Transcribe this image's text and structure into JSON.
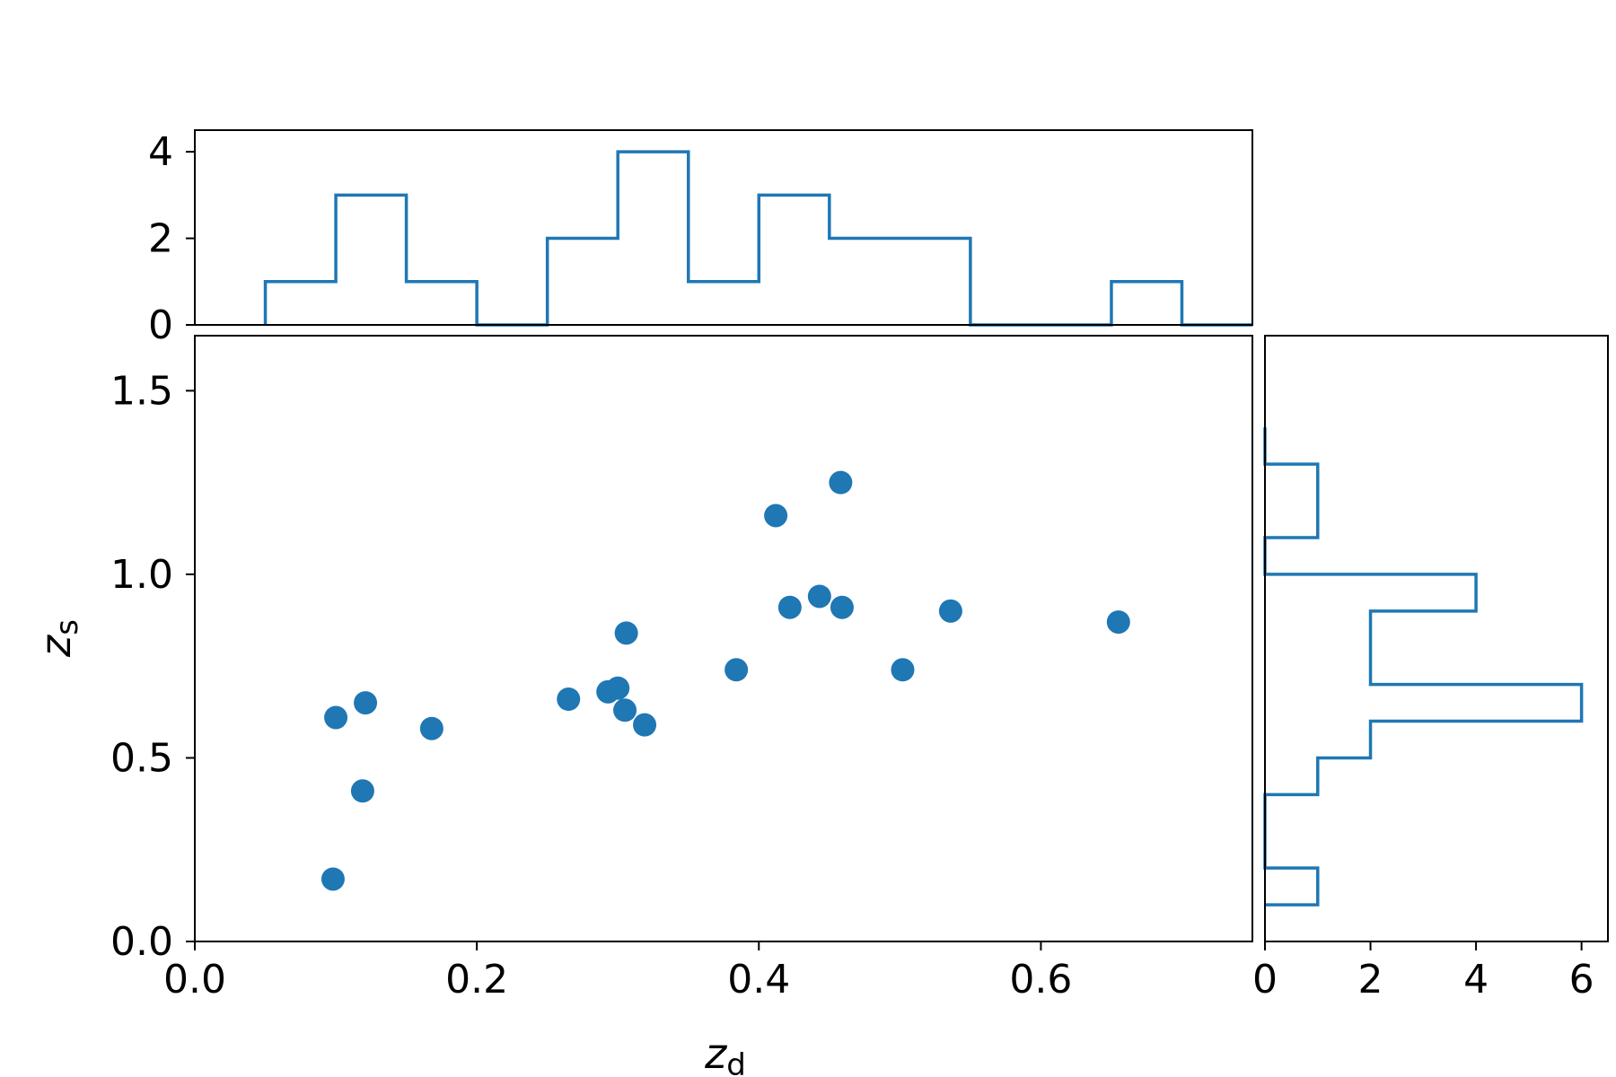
{
  "chart_data": {
    "type": "scatter",
    "layout": "joint plot with marginal step histograms",
    "series_color": "#1f77b4",
    "x_axis": {
      "label_base": "z",
      "label_sub": "d",
      "range": [
        0.0,
        0.75
      ],
      "ticks": [
        0.0,
        0.2,
        0.4,
        0.6
      ],
      "tick_labels": [
        "0.0",
        "0.2",
        "0.4",
        "0.6"
      ]
    },
    "y_axis": {
      "label_base": "z",
      "label_sub": "s",
      "range": [
        0.0,
        1.65
      ],
      "ticks": [
        0.0,
        0.5,
        1.0,
        1.5
      ],
      "tick_labels": [
        "0.0",
        "0.5",
        "1.0",
        "1.5"
      ]
    },
    "points": [
      {
        "x": 0.098,
        "y": 0.17
      },
      {
        "x": 0.1,
        "y": 0.61
      },
      {
        "x": 0.119,
        "y": 0.41
      },
      {
        "x": 0.121,
        "y": 0.65
      },
      {
        "x": 0.168,
        "y": 0.58
      },
      {
        "x": 0.265,
        "y": 0.66
      },
      {
        "x": 0.293,
        "y": 0.68
      },
      {
        "x": 0.3,
        "y": 0.69
      },
      {
        "x": 0.305,
        "y": 0.63
      },
      {
        "x": 0.306,
        "y": 0.84
      },
      {
        "x": 0.319,
        "y": 0.59
      },
      {
        "x": 0.384,
        "y": 0.74
      },
      {
        "x": 0.412,
        "y": 1.16
      },
      {
        "x": 0.422,
        "y": 0.91
      },
      {
        "x": 0.443,
        "y": 0.94
      },
      {
        "x": 0.458,
        "y": 1.25
      },
      {
        "x": 0.459,
        "y": 0.91
      },
      {
        "x": 0.502,
        "y": 0.74
      },
      {
        "x": 0.536,
        "y": 0.9
      },
      {
        "x": 0.655,
        "y": 0.87
      }
    ],
    "top_histogram": {
      "bin_edges": [
        0.05,
        0.1,
        0.15,
        0.2,
        0.25,
        0.3,
        0.35,
        0.4,
        0.45,
        0.5,
        0.55,
        0.6,
        0.65,
        0.7,
        0.75
      ],
      "counts": [
        1,
        3,
        1,
        0,
        2,
        4,
        1,
        3,
        2,
        2,
        0,
        0,
        1,
        0
      ],
      "count_range": [
        0,
        4.5
      ],
      "ticks": [
        0,
        2,
        4
      ],
      "tick_labels": [
        "0",
        "2",
        "4"
      ]
    },
    "right_histogram": {
      "bin_edges": [
        0.1,
        0.2,
        0.3,
        0.4,
        0.5,
        0.6,
        0.7,
        0.8,
        0.9,
        1.0,
        1.1,
        1.2,
        1.3,
        1.4
      ],
      "counts": [
        1,
        0,
        0,
        1,
        2,
        6,
        2,
        2,
        4,
        0,
        1,
        1,
        0
      ],
      "count_range": [
        0,
        6.5
      ],
      "ticks": [
        0,
        2,
        4,
        6
      ],
      "tick_labels": [
        "0",
        "2",
        "4",
        "6"
      ]
    }
  }
}
